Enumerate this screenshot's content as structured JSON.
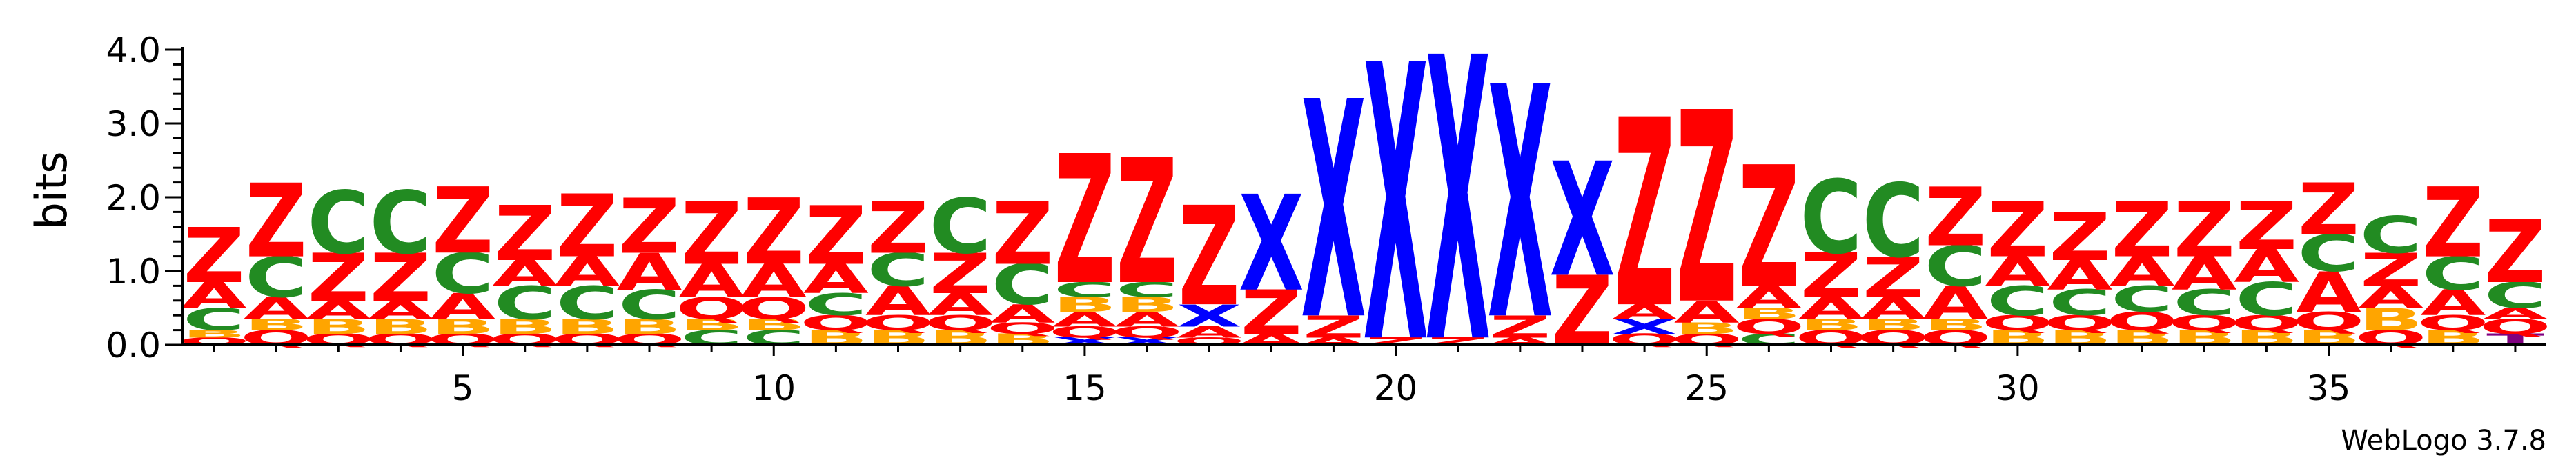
{
  "chart_data": {
    "type": "sequence-logo",
    "ylabel": "bits",
    "ylim": [
      0,
      4.0
    ],
    "y_ticks": [
      "0.0",
      "1.0",
      "2.0",
      "3.0",
      "4.0"
    ],
    "x_ticks": [
      5,
      10,
      15,
      20,
      25,
      30,
      35
    ],
    "x_range": [
      1,
      38
    ],
    "credit": "WebLogo 3.7.8",
    "colors": {
      "Z": "#ff0000",
      "X": "#0000ff",
      "C": "#228b22",
      "A": "#ff0000",
      "B": "#ffa500",
      "Q": "#ff0000",
      "T": "#800080"
    },
    "positions": [
      {
        "pos": 1,
        "stack": [
          [
            "Q",
            0.1
          ],
          [
            "B",
            0.1
          ],
          [
            "C",
            0.3
          ],
          [
            "A",
            0.35
          ],
          [
            "Z",
            0.75
          ]
        ]
      },
      {
        "pos": 2,
        "stack": [
          [
            "Q",
            0.2
          ],
          [
            "B",
            0.15
          ],
          [
            "A",
            0.3
          ],
          [
            "C",
            0.55
          ],
          [
            "Z",
            1.0
          ]
        ]
      },
      {
        "pos": 3,
        "stack": [
          [
            "Q",
            0.15
          ],
          [
            "B",
            0.2
          ],
          [
            "A",
            0.25
          ],
          [
            "Z",
            0.65
          ],
          [
            "C",
            0.85
          ]
        ]
      },
      {
        "pos": 4,
        "stack": [
          [
            "Q",
            0.15
          ],
          [
            "B",
            0.2
          ],
          [
            "A",
            0.25
          ],
          [
            "Z",
            0.65
          ],
          [
            "C",
            0.85
          ]
        ]
      },
      {
        "pos": 5,
        "stack": [
          [
            "Q",
            0.15
          ],
          [
            "B",
            0.2
          ],
          [
            "A",
            0.35
          ],
          [
            "C",
            0.55
          ],
          [
            "Z",
            0.9
          ]
        ]
      },
      {
        "pos": 6,
        "stack": [
          [
            "Q",
            0.15
          ],
          [
            "B",
            0.2
          ],
          [
            "C",
            0.45
          ],
          [
            "A",
            0.35
          ],
          [
            "Z",
            0.75
          ]
        ]
      },
      {
        "pos": 7,
        "stack": [
          [
            "Q",
            0.15
          ],
          [
            "B",
            0.2
          ],
          [
            "C",
            0.45
          ],
          [
            "A",
            0.4
          ],
          [
            "Z",
            0.85
          ]
        ]
      },
      {
        "pos": 8,
        "stack": [
          [
            "Q",
            0.15
          ],
          [
            "B",
            0.2
          ],
          [
            "C",
            0.4
          ],
          [
            "A",
            0.5
          ],
          [
            "Z",
            0.75
          ]
        ]
      },
      {
        "pos": 9,
        "stack": [
          [
            "C",
            0.2
          ],
          [
            "B",
            0.15
          ],
          [
            "Q",
            0.3
          ],
          [
            "A",
            0.45
          ],
          [
            "Z",
            0.85
          ]
        ]
      },
      {
        "pos": 10,
        "stack": [
          [
            "C",
            0.2
          ],
          [
            "B",
            0.15
          ],
          [
            "Q",
            0.3
          ],
          [
            "A",
            0.45
          ],
          [
            "Z",
            0.9
          ]
        ]
      },
      {
        "pos": 11,
        "stack": [
          [
            "B",
            0.2
          ],
          [
            "Q",
            0.2
          ],
          [
            "C",
            0.3
          ],
          [
            "A",
            0.4
          ],
          [
            "Z",
            0.8
          ]
        ]
      },
      {
        "pos": 12,
        "stack": [
          [
            "B",
            0.2
          ],
          [
            "Q",
            0.2
          ],
          [
            "A",
            0.4
          ],
          [
            "C",
            0.45
          ],
          [
            "Z",
            0.7
          ]
        ]
      },
      {
        "pos": 13,
        "stack": [
          [
            "B",
            0.2
          ],
          [
            "Q",
            0.2
          ],
          [
            "A",
            0.3
          ],
          [
            "Z",
            0.55
          ],
          [
            "C",
            0.75
          ]
        ]
      },
      {
        "pos": 14,
        "stack": [
          [
            "B",
            0.15
          ],
          [
            "Q",
            0.15
          ],
          [
            "A",
            0.25
          ],
          [
            "C",
            0.55
          ],
          [
            "Z",
            0.85
          ]
        ]
      },
      {
        "pos": 15,
        "stack": [
          [
            "X",
            0.1
          ],
          [
            "Q",
            0.15
          ],
          [
            "A",
            0.2
          ],
          [
            "B",
            0.2
          ],
          [
            "C",
            0.2
          ],
          [
            "Z",
            1.75
          ]
        ]
      },
      {
        "pos": 16,
        "stack": [
          [
            "X",
            0.1
          ],
          [
            "Q",
            0.15
          ],
          [
            "A",
            0.2
          ],
          [
            "B",
            0.2
          ],
          [
            "C",
            0.2
          ],
          [
            "Z",
            1.7
          ]
        ]
      },
      {
        "pos": 17,
        "stack": [
          [
            "Q",
            0.1
          ],
          [
            "A",
            0.15
          ],
          [
            "X",
            0.3
          ],
          [
            "Z",
            1.35
          ]
        ]
      },
      {
        "pos": 18,
        "stack": [
          [
            "A",
            0.15
          ],
          [
            "Z",
            0.6
          ],
          [
            "X",
            1.3
          ]
        ]
      },
      {
        "pos": 19,
        "stack": [
          [
            "A",
            0.1
          ],
          [
            "Z",
            0.3
          ],
          [
            "X",
            2.95
          ]
        ]
      },
      {
        "pos": 20,
        "stack": [
          [
            "Z",
            0.1
          ],
          [
            "X",
            3.75
          ]
        ]
      },
      {
        "pos": 21,
        "stack": [
          [
            "Z",
            0.1
          ],
          [
            "X",
            3.85
          ]
        ]
      },
      {
        "pos": 22,
        "stack": [
          [
            "A",
            0.1
          ],
          [
            "Z",
            0.3
          ],
          [
            "X",
            3.15
          ]
        ]
      },
      {
        "pos": 23,
        "stack": [
          [
            "Z",
            0.95
          ],
          [
            "X",
            1.55
          ]
        ]
      },
      {
        "pos": 24,
        "stack": [
          [
            "Q",
            0.15
          ],
          [
            "X",
            0.2
          ],
          [
            "A",
            0.2
          ],
          [
            "Z",
            2.55
          ]
        ]
      },
      {
        "pos": 25,
        "stack": [
          [
            "Q",
            0.15
          ],
          [
            "B",
            0.15
          ],
          [
            "A",
            0.3
          ],
          [
            "Z",
            2.6
          ]
        ]
      },
      {
        "pos": 26,
        "stack": [
          [
            "C",
            0.15
          ],
          [
            "Q",
            0.2
          ],
          [
            "B",
            0.15
          ],
          [
            "A",
            0.3
          ],
          [
            "Z",
            1.65
          ]
        ]
      },
      {
        "pos": 27,
        "stack": [
          [
            "Q",
            0.2
          ],
          [
            "B",
            0.15
          ],
          [
            "A",
            0.3
          ],
          [
            "Z",
            0.6
          ],
          [
            "C",
            1.0
          ]
        ]
      },
      {
        "pos": 28,
        "stack": [
          [
            "Q",
            0.2
          ],
          [
            "B",
            0.15
          ],
          [
            "A",
            0.3
          ],
          [
            "Z",
            0.55
          ],
          [
            "C",
            1.0
          ]
        ]
      },
      {
        "pos": 29,
        "stack": [
          [
            "Q",
            0.2
          ],
          [
            "B",
            0.15
          ],
          [
            "A",
            0.45
          ],
          [
            "C",
            0.55
          ],
          [
            "Z",
            0.8
          ]
        ]
      },
      {
        "pos": 30,
        "stack": [
          [
            "B",
            0.2
          ],
          [
            "Q",
            0.2
          ],
          [
            "C",
            0.4
          ],
          [
            "A",
            0.4
          ],
          [
            "Z",
            0.75
          ]
        ]
      },
      {
        "pos": 31,
        "stack": [
          [
            "B",
            0.2
          ],
          [
            "Q",
            0.2
          ],
          [
            "C",
            0.35
          ],
          [
            "A",
            0.4
          ],
          [
            "Z",
            0.65
          ]
        ]
      },
      {
        "pos": 32,
        "stack": [
          [
            "B",
            0.2
          ],
          [
            "Q",
            0.25
          ],
          [
            "C",
            0.35
          ],
          [
            "A",
            0.4
          ],
          [
            "Z",
            0.75
          ]
        ]
      },
      {
        "pos": 33,
        "stack": [
          [
            "B",
            0.2
          ],
          [
            "Q",
            0.2
          ],
          [
            "C",
            0.35
          ],
          [
            "A",
            0.45
          ],
          [
            "Z",
            0.75
          ]
        ]
      },
      {
        "pos": 34,
        "stack": [
          [
            "B",
            0.2
          ],
          [
            "Q",
            0.2
          ],
          [
            "C",
            0.45
          ],
          [
            "A",
            0.45
          ],
          [
            "Z",
            0.65
          ]
        ]
      },
      {
        "pos": 35,
        "stack": [
          [
            "B",
            0.2
          ],
          [
            "Q",
            0.25
          ],
          [
            "A",
            0.55
          ],
          [
            "C",
            0.5
          ],
          [
            "Z",
            0.7
          ]
        ]
      },
      {
        "pos": 36,
        "stack": [
          [
            "Q",
            0.2
          ],
          [
            "B",
            0.3
          ],
          [
            "A",
            0.3
          ],
          [
            "Z",
            0.45
          ],
          [
            "C",
            0.5
          ]
        ]
      },
      {
        "pos": 37,
        "stack": [
          [
            "B",
            0.2
          ],
          [
            "Q",
            0.2
          ],
          [
            "A",
            0.35
          ],
          [
            "C",
            0.45
          ],
          [
            "Z",
            0.95
          ]
        ]
      },
      {
        "pos": 38,
        "stack": [
          [
            "T",
            0.15
          ],
          [
            "Q",
            0.2
          ],
          [
            "A",
            0.15
          ],
          [
            "C",
            0.35
          ],
          [
            "Z",
            0.85
          ]
        ]
      }
    ]
  }
}
